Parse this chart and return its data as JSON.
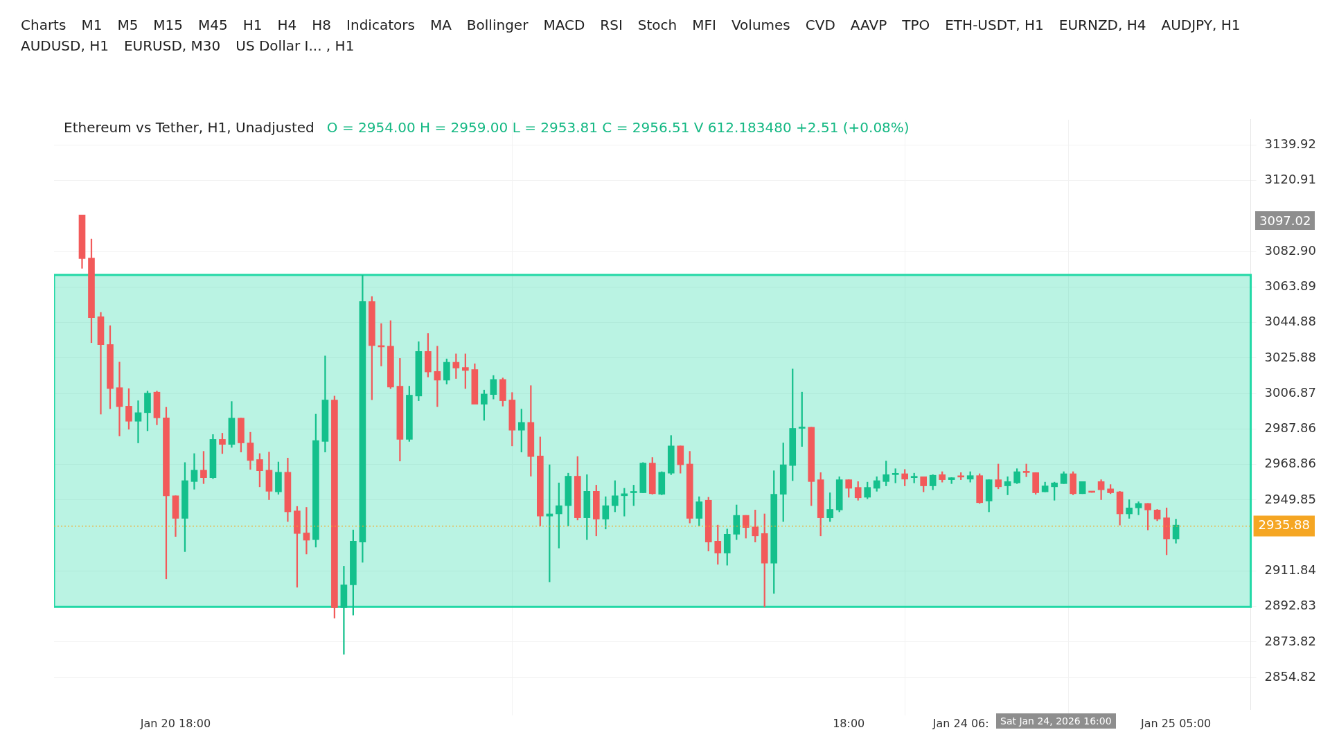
{
  "chart_data": {
    "type": "candlestick",
    "title": "Ethereum vs Tether, H1, Unadjusted",
    "subtitle": "O = 2954.00   H = 2959.00   L = 2953.81   C = 2956.51   V 612.183480   +2.51 (+0.08%)",
    "annotations": [
      "Charts",
      "M1",
      "M5",
      "M15",
      "M45",
      "H1",
      "H4",
      "H8",
      "Indicators",
      "MA",
      "Bollinger",
      "MACD",
      "RSI",
      "Stoch",
      "MFI",
      "Volumes",
      "CVD",
      "AAVP",
      "TPO",
      "ETH-USDT, H1",
      "EURNZD, H4",
      "AUDJPY, H1",
      "AUDUSD, H1",
      "EURUSD, M30",
      "US Dollar I... , H1",
      "3097.02",
      "Sat Jan 24, 2026 16:00"
    ],
    "x": [
      "2026-01-20T08:00",
      "2026-01-20T09:00",
      "2026-01-20T10:00",
      "2026-01-20T11:00",
      "2026-01-20T12:00",
      "2026-01-20T13:00",
      "2026-01-20T14:00",
      "2026-01-20T15:00",
      "2026-01-20T16:00",
      "2026-01-20T17:00",
      "2026-01-20T18:00",
      "2026-01-20T19:00",
      "2026-01-20T20:00",
      "2026-01-20T21:00",
      "2026-01-20T22:00",
      "2026-01-20T23:00",
      "2026-01-21T00:00",
      "2026-01-21T01:00",
      "2026-01-21T02:00",
      "2026-01-21T03:00",
      "2026-01-21T04:00",
      "2026-01-21T05:00",
      "2026-01-21T06:00",
      "2026-01-21T07:00",
      "2026-01-21T08:00",
      "2026-01-21T09:00",
      "2026-01-21T10:00",
      "2026-01-21T11:00",
      "2026-01-21T12:00",
      "2026-01-21T13:00",
      "2026-01-21T14:00",
      "2026-01-21T15:00",
      "2026-01-21T16:00",
      "2026-01-21T17:00",
      "2026-01-21T18:00",
      "2026-01-21T19:00",
      "2026-01-21T20:00",
      "2026-01-21T21:00",
      "2026-01-21T22:00",
      "2026-01-21T23:00",
      "2026-01-22T00:00",
      "2026-01-22T01:00",
      "2026-01-22T02:00",
      "2026-01-22T03:00",
      "2026-01-22T04:00",
      "2026-01-22T05:00",
      "2026-01-22T06:00",
      "2026-01-22T07:00",
      "2026-01-22T08:00",
      "2026-01-22T09:00",
      "2026-01-22T10:00",
      "2026-01-22T11:00",
      "2026-01-22T12:00",
      "2026-01-22T13:00",
      "2026-01-22T14:00",
      "2026-01-22T15:00",
      "2026-01-22T16:00",
      "2026-01-22T17:00",
      "2026-01-22T18:00",
      "2026-01-22T19:00",
      "2026-01-22T20:00",
      "2026-01-22T21:00",
      "2026-01-22T22:00",
      "2026-01-22T23:00",
      "2026-01-23T00:00",
      "2026-01-23T01:00",
      "2026-01-23T02:00",
      "2026-01-23T03:00",
      "2026-01-23T04:00",
      "2026-01-23T05:00",
      "2026-01-23T06:00",
      "2026-01-23T07:00",
      "2026-01-23T08:00",
      "2026-01-23T09:00",
      "2026-01-23T10:00",
      "2026-01-23T11:00",
      "2026-01-23T12:00",
      "2026-01-23T13:00",
      "2026-01-23T14:00",
      "2026-01-23T15:00",
      "2026-01-23T16:00",
      "2026-01-23T17:00",
      "2026-01-23T18:00",
      "2026-01-23T19:00",
      "2026-01-23T20:00",
      "2026-01-23T21:00",
      "2026-01-23T22:00",
      "2026-01-23T23:00",
      "2026-01-24T00:00",
      "2026-01-24T01:00",
      "2026-01-24T02:00",
      "2026-01-24T03:00",
      "2026-01-24T04:00",
      "2026-01-24T05:00",
      "2026-01-24T06:00",
      "2026-01-24T07:00",
      "2026-01-24T08:00",
      "2026-01-24T09:00",
      "2026-01-24T10:00",
      "2026-01-24T11:00",
      "2026-01-24T12:00",
      "2026-01-24T13:00",
      "2026-01-24T14:00",
      "2026-01-24T15:00",
      "2026-01-24T16:00",
      "2026-01-24T17:00",
      "2026-01-24T18:00",
      "2026-01-24T19:00",
      "2026-01-24T20:00",
      "2026-01-24T21:00",
      "2026-01-24T22:00",
      "2026-01-24T23:00",
      "2026-01-25T00:00",
      "2026-01-25T01:00",
      "2026-01-25T02:00",
      "2026-01-25T03:00",
      "2026-01-25T04:00",
      "2026-01-25T05:00"
    ],
    "ohlc": [
      [
        3102.5,
        3102.5,
        3073.9,
        3079.1
      ],
      [
        3079.4,
        3089.6,
        3034.1,
        3047.5
      ],
      [
        3048.0,
        3050.3,
        2995.8,
        3033.0
      ],
      [
        3033.1,
        3043.2,
        2998.7,
        3009.5
      ],
      [
        3010.0,
        3023.7,
        2984.1,
        2999.8
      ],
      [
        3000.1,
        3009.5,
        2987.7,
        2992.0
      ],
      [
        2992.0,
        3003.0,
        2980.4,
        2996.6
      ],
      [
        2996.6,
        3008.2,
        2986.9,
        3007.1
      ],
      [
        3007.6,
        3008.2,
        2990.1,
        2993.8
      ],
      [
        2993.8,
        2999.5,
        2907.6,
        2952.1
      ],
      [
        2952.1,
        2952.1,
        2930.3,
        2940.0
      ],
      [
        2940.0,
        2969.9,
        2922.2,
        2960.2
      ],
      [
        2959.7,
        2974.7,
        2955.6,
        2965.8
      ],
      [
        2965.8,
        2975.9,
        2958.6,
        2961.8
      ],
      [
        2961.8,
        2984.9,
        2961.3,
        2982.3
      ],
      [
        2982.3,
        2985.6,
        2974.7,
        2979.6
      ],
      [
        2979.6,
        3002.6,
        2978.0,
        2993.7
      ],
      [
        2993.7,
        2993.7,
        2975.5,
        2980.4
      ],
      [
        2980.4,
        2986.1,
        2966.2,
        2971.0
      ],
      [
        2971.5,
        2974.7,
        2956.9,
        2965.5
      ],
      [
        2965.8,
        2975.5,
        2950.0,
        2954.5
      ],
      [
        2954.2,
        2970.2,
        2952.9,
        2964.7
      ],
      [
        2964.7,
        2972.3,
        2938.3,
        2943.5
      ],
      [
        2944.0,
        2946.4,
        2903.1,
        2931.9
      ],
      [
        2932.2,
        2945.9,
        2920.9,
        2928.3
      ],
      [
        2928.6,
        2995.8,
        2924.6,
        2981.7
      ],
      [
        2981.2,
        3027.0,
        2975.5,
        3003.4
      ],
      [
        3003.4,
        3005.5,
        2886.6,
        2892.2
      ],
      [
        2892.2,
        2914.4,
        2867.2,
        2904.4
      ],
      [
        2904.4,
        2933.8,
        2888.2,
        2927.8
      ],
      [
        2927.3,
        3070.2,
        2916.5,
        3056.1
      ],
      [
        3056.1,
        3058.8,
        3003.5,
        3032.5
      ],
      [
        3032.3,
        3044.3,
        3021.6,
        3031.8
      ],
      [
        3032.2,
        3045.9,
        3009.5,
        3010.3
      ],
      [
        3010.8,
        3025.7,
        2970.7,
        2982.3
      ],
      [
        2982.3,
        3010.8,
        2981.2,
        3006.0
      ],
      [
        3005.5,
        3034.6,
        3003.0,
        3029.4
      ],
      [
        3029.4,
        3039.0,
        3015.7,
        3018.4
      ],
      [
        3018.7,
        3032.2,
        2999.8,
        3014.0
      ],
      [
        3014.0,
        3025.4,
        3011.9,
        3023.6
      ],
      [
        3023.6,
        3028.1,
        3014.9,
        3020.5
      ],
      [
        3020.8,
        3028.1,
        3009.5,
        3019.2
      ],
      [
        3019.7,
        3022.8,
        3001.1,
        3001.1
      ],
      [
        3001.1,
        3008.7,
        2992.5,
        3006.6
      ],
      [
        3006.3,
        3016.5,
        3003.9,
        3014.4
      ],
      [
        3014.4,
        3015.2,
        3000.1,
        3003.0
      ],
      [
        3003.4,
        3007.4,
        2978.8,
        2987.2
      ],
      [
        2987.2,
        2998.5,
        2975.5,
        2991.4
      ],
      [
        2991.4,
        3011.1,
        2962.6,
        2973.1
      ],
      [
        2973.4,
        2983.6,
        2935.9,
        2941.2
      ],
      [
        2941.2,
        2968.7,
        2906.0,
        2942.4
      ],
      [
        2942.4,
        2959.0,
        2924.1,
        2946.8
      ],
      [
        2946.8,
        2964.2,
        2935.9,
        2962.6
      ],
      [
        2962.6,
        2973.1,
        2939.1,
        2940.3
      ],
      [
        2940.3,
        2963.4,
        2928.6,
        2954.5
      ],
      [
        2954.5,
        2957.8,
        2930.6,
        2939.6
      ],
      [
        2939.6,
        2951.6,
        2934.3,
        2946.8
      ],
      [
        2946.8,
        2960.2,
        2943.5,
        2952.1
      ],
      [
        2952.1,
        2956.1,
        2941.2,
        2953.2
      ],
      [
        2953.7,
        2957.8,
        2946.8,
        2954.2
      ],
      [
        2953.7,
        2969.9,
        2953.7,
        2969.6
      ],
      [
        2969.6,
        2972.6,
        2952.9,
        2953.2
      ],
      [
        2952.9,
        2965.0,
        2952.6,
        2964.7
      ],
      [
        2964.2,
        2984.4,
        2963.4,
        2978.8
      ],
      [
        2978.8,
        2978.8,
        2964.2,
        2968.7
      ],
      [
        2969.1,
        2975.9,
        2937.5,
        2940.0
      ],
      [
        2940.0,
        2951.6,
        2935.9,
        2948.9
      ],
      [
        2949.7,
        2951.3,
        2922.5,
        2927.3
      ],
      [
        2927.8,
        2936.4,
        2915.4,
        2921.4
      ],
      [
        2921.4,
        2934.3,
        2914.9,
        2931.5
      ],
      [
        2931.5,
        2947.2,
        2928.6,
        2941.6
      ],
      [
        2941.6,
        2941.6,
        2929.4,
        2935.1
      ],
      [
        2935.4,
        2944.5,
        2927.3,
        2930.6
      ],
      [
        2931.9,
        2942.4,
        2892.6,
        2916.0
      ],
      [
        2916.0,
        2965.5,
        2899.8,
        2952.9
      ],
      [
        2952.9,
        2980.4,
        2938.3,
        2968.7
      ],
      [
        2968.3,
        3020.0,
        2960.2,
        2988.2
      ],
      [
        2988.2,
        3007.6,
        2978.5,
        2988.8
      ],
      [
        2988.8,
        2988.8,
        2946.8,
        2959.7
      ],
      [
        2960.7,
        2964.5,
        2930.6,
        2940.3
      ],
      [
        2940.3,
        2953.7,
        2938.3,
        2944.8
      ],
      [
        2944.5,
        2962.3,
        2943.5,
        2960.7
      ],
      [
        2960.7,
        2960.7,
        2951.3,
        2956.1
      ],
      [
        2956.6,
        2959.7,
        2949.7,
        2951.0
      ],
      [
        2951.3,
        2959.4,
        2950.5,
        2956.6
      ],
      [
        2956.1,
        2962.3,
        2954.5,
        2960.2
      ],
      [
        2959.7,
        2970.7,
        2957.4,
        2963.4
      ],
      [
        2963.4,
        2966.6,
        2959.0,
        2963.9
      ],
      [
        2963.9,
        2966.2,
        2957.4,
        2961.0
      ],
      [
        2961.8,
        2964.2,
        2959.0,
        2962.3
      ],
      [
        2962.3,
        2962.3,
        2954.2,
        2957.4
      ],
      [
        2957.4,
        2963.4,
        2955.3,
        2963.1
      ],
      [
        2963.4,
        2965.0,
        2959.4,
        2960.7
      ],
      [
        2960.7,
        2961.8,
        2958.6,
        2961.8
      ],
      [
        2962.6,
        2964.5,
        2960.7,
        2962.1
      ],
      [
        2961.0,
        2965.0,
        2959.4,
        2962.9
      ],
      [
        2962.9,
        2963.9,
        2948.0,
        2948.4
      ],
      [
        2949.3,
        2960.7,
        2943.5,
        2960.7
      ],
      [
        2960.7,
        2969.1,
        2955.8,
        2956.9
      ],
      [
        2957.4,
        2962.3,
        2952.6,
        2959.7
      ],
      [
        2959.0,
        2966.6,
        2958.6,
        2965.0
      ],
      [
        2965.0,
        2969.1,
        2962.3,
        2964.5
      ],
      [
        2964.5,
        2964.5,
        2952.9,
        2953.7
      ],
      [
        2954.2,
        2959.4,
        2954.2,
        2957.4
      ],
      [
        2956.9,
        2959.4,
        2949.7,
        2959.0
      ],
      [
        2958.6,
        2965.0,
        2958.6,
        2963.9
      ],
      [
        2963.9,
        2965.0,
        2952.6,
        2953.2
      ],
      [
        2953.2,
        2959.7,
        2953.2,
        2959.7
      ],
      [
        2954.2,
        2954.2,
        2953.9,
        2953.9
      ],
      [
        2959.7,
        2960.7,
        2950.0,
        2955.3
      ],
      [
        2955.8,
        2958.1,
        2953.2,
        2953.7
      ],
      [
        2954.2,
        2954.5,
        2936.4,
        2942.4
      ],
      [
        2942.4,
        2950.0,
        2940.0,
        2945.6
      ],
      [
        2945.6,
        2948.9,
        2941.9,
        2948.0
      ],
      [
        2948.0,
        2948.0,
        2933.8,
        2944.5
      ],
      [
        2944.5,
        2944.8,
        2938.7,
        2939.6
      ],
      [
        2940.3,
        2945.6,
        2920.5,
        2929.0
      ],
      [
        2929.0,
        2939.6,
        2926.7,
        2936.4
      ]
    ],
    "xlim": [
      "2026-01-20T05:00",
      "2026-01-25T13:00"
    ],
    "xticks": [
      {
        "value": "2026-01-20T18:00",
        "label": "Jan 20 18:00"
      },
      {
        "value": "2026-01-23T18:00",
        "label": "18:00"
      },
      {
        "value": "2026-01-24T06:00",
        "label": "Jan 24 06:"
      },
      {
        "value": "2026-01-25T05:00",
        "label": "Jan 25 05:00"
      }
    ],
    "ylim": [
      2837.5,
      3153.5
    ],
    "yticks": [
      {
        "value": 2854.82,
        "label": "2854.82"
      },
      {
        "value": 2873.82,
        "label": "2873.82"
      },
      {
        "value": 2892.83,
        "label": "2892.83"
      },
      {
        "value": 2911.84,
        "label": "2911.84"
      },
      {
        "value": 2949.85,
        "label": "2949.85"
      },
      {
        "value": 2968.86,
        "label": "2968.86"
      },
      {
        "value": 2987.86,
        "label": "2987.86"
      },
      {
        "value": 3006.87,
        "label": "3006.87"
      },
      {
        "value": 3025.88,
        "label": "3025.88"
      },
      {
        "value": 3044.88,
        "label": "3044.88"
      },
      {
        "value": 3063.89,
        "label": "3063.89"
      },
      {
        "value": 3082.9,
        "label": "3082.90"
      },
      {
        "value": 3120.91,
        "label": "3120.91"
      },
      {
        "value": 3139.92,
        "label": "3139.92"
      }
    ],
    "ref_lines": [
      {
        "axis": "y",
        "value": 2935.88,
        "label": "2935.88",
        "color": "#f5a623",
        "line_style": "dotted"
      }
    ],
    "bands": [
      {
        "axis": "y",
        "from": 2892.6,
        "to": 3070.3,
        "color": "#22d8a6"
      }
    ],
    "grid": true,
    "legend": false
  }
}
